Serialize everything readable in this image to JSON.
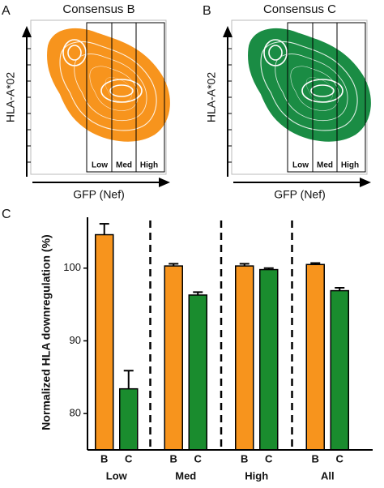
{
  "chart_data": [
    {
      "type": "density",
      "panel": "A",
      "title": "Consensus B",
      "xlabel": "GFP (Nef)",
      "ylabel": "HLA-A*02",
      "gates": [
        "Low",
        "Med",
        "High"
      ],
      "color": "#f7941d"
    },
    {
      "type": "density",
      "panel": "B",
      "title": "Consensus C",
      "xlabel": "GFP (Nef)",
      "ylabel": "HLA-A*02",
      "gates": [
        "Low",
        "Med",
        "High"
      ],
      "color": "#1a8c44"
    },
    {
      "type": "bar",
      "panel": "C",
      "ylabel": "Normalized HLA downregulation (%)",
      "categories": [
        "Low",
        "Med",
        "High",
        "All"
      ],
      "series": [
        {
          "name": "B",
          "color": "#f7941d",
          "values": [
            104.6,
            100.3,
            100.3,
            100.5
          ],
          "errors": [
            1.5,
            0.3,
            0.3,
            0.2
          ]
        },
        {
          "name": "C",
          "color": "#1a8c2e",
          "values": [
            83.4,
            96.3,
            99.8,
            96.9
          ],
          "errors": [
            2.5,
            0.4,
            0.2,
            0.4
          ]
        }
      ],
      "ylim": [
        75,
        107
      ],
      "yticks": [
        80,
        90,
        100
      ]
    }
  ]
}
